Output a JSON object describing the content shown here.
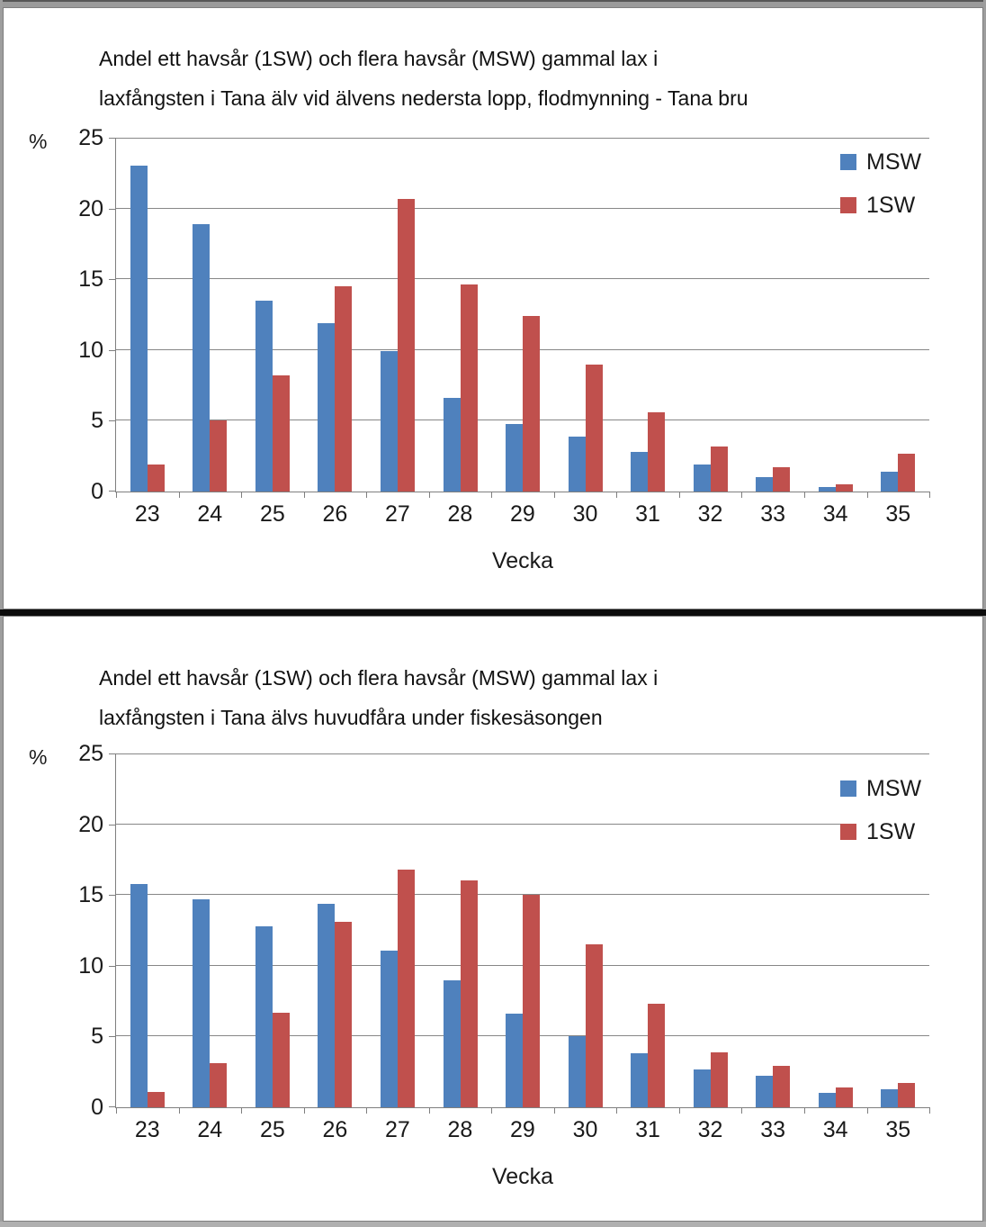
{
  "page": {
    "background": "#ffffff",
    "frame_color": "#9b9b9b",
    "divider_color": "#0c0c0c",
    "panel_border_color": "#7f7f7f",
    "gridline_color": "#878787",
    "text_color": "#111111"
  },
  "chart_data": [
    {
      "type": "bar",
      "title": "Andel ett havsår (1SW) och flera havsår (MSW) gammal lax i laxfångsten i Tana älv vid älvens nedersta lopp, flodmynning - Tana bru",
      "title_lines": [
        "Andel ett havsår (1SW) och flera havsår (MSW) gammal lax i",
        "laxfångsten i Tana älv vid älvens nedersta lopp, flodmynning - Tana bru"
      ],
      "ylabel": "%",
      "xlabel": "Vecka",
      "ylim": [
        0,
        25
      ],
      "yticks": [
        0,
        5,
        10,
        15,
        20,
        25
      ],
      "grid": true,
      "legend_position": "top-right",
      "categories": [
        "23",
        "24",
        "25",
        "26",
        "27",
        "28",
        "29",
        "30",
        "31",
        "32",
        "33",
        "34",
        "35"
      ],
      "series": [
        {
          "name": "MSW",
          "color": "#4F81BD",
          "values": [
            23.0,
            18.9,
            13.5,
            11.9,
            9.9,
            6.6,
            4.8,
            3.9,
            2.8,
            1.9,
            1.0,
            0.3,
            1.4
          ]
        },
        {
          "name": "1SW",
          "color": "#C0504D",
          "values": [
            1.9,
            5.0,
            8.2,
            14.5,
            20.7,
            14.6,
            12.4,
            9.0,
            5.6,
            3.2,
            1.7,
            0.5,
            2.7
          ]
        }
      ]
    },
    {
      "type": "bar",
      "title": "Andel ett havsår (1SW) och flera havsår (MSW) gammal lax i laxfångsten i Tana älvs huvudfåra under fiskesäsongen",
      "title_lines": [
        "Andel ett havsår (1SW) och flera havsår (MSW) gammal lax i",
        "laxfångsten i Tana älvs huvudfåra under fiskesäsongen"
      ],
      "ylabel": "%",
      "xlabel": "Vecka",
      "ylim": [
        0,
        25
      ],
      "yticks": [
        0,
        5,
        10,
        15,
        20,
        25
      ],
      "grid": true,
      "legend_position": "top-right",
      "categories": [
        "23",
        "24",
        "25",
        "26",
        "27",
        "28",
        "29",
        "30",
        "31",
        "32",
        "33",
        "34",
        "35"
      ],
      "series": [
        {
          "name": "MSW",
          "color": "#4F81BD",
          "values": [
            15.8,
            14.7,
            12.8,
            14.4,
            11.1,
            9.0,
            6.6,
            5.0,
            3.8,
            2.7,
            2.2,
            1.0,
            1.3
          ]
        },
        {
          "name": "1SW",
          "color": "#C0504D",
          "values": [
            1.1,
            3.1,
            6.7,
            13.1,
            16.8,
            16.0,
            15.0,
            11.5,
            7.3,
            3.9,
            2.9,
            1.4,
            1.7
          ]
        }
      ]
    }
  ]
}
